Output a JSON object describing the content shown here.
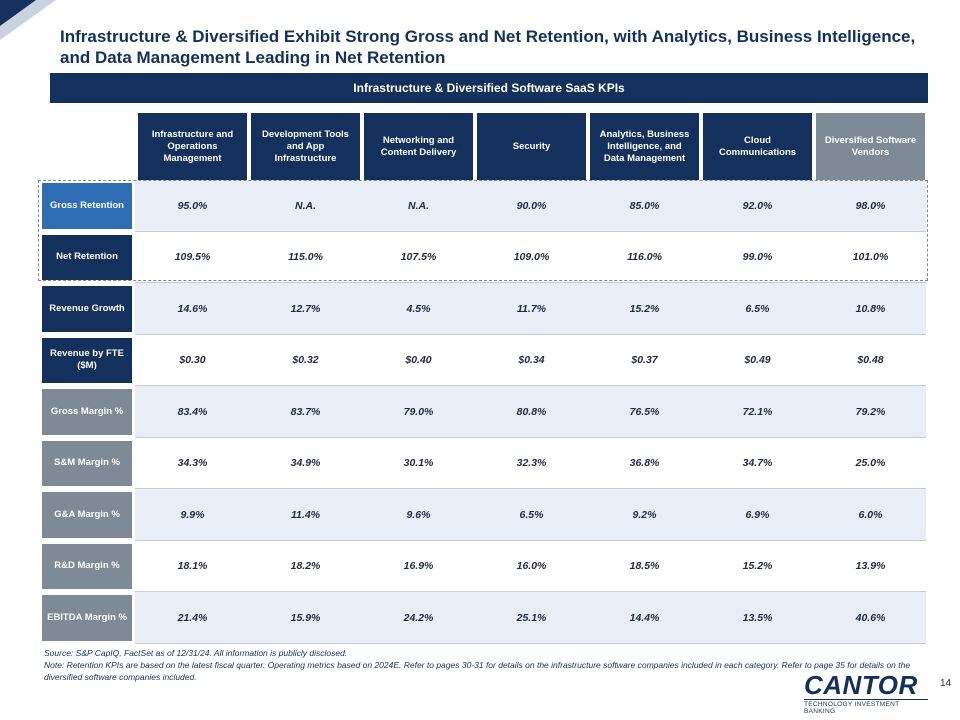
{
  "title": "Infrastructure & Diversified Exhibit Strong Gross and Net Retention, with Analytics, Business Intelligence, and Data Management Leading in Net Retention",
  "table_band": "Infrastructure & Diversified Software SaaS KPIs",
  "columns": [
    "Infrastructure and Operations Management",
    "Development Tools and App Infrastructure",
    "Networking and Content Delivery",
    "Security",
    "Analytics, Business Intelligence, and Data Management",
    "Cloud Communications",
    "Diversified Software Vendors"
  ],
  "rows": [
    {
      "label": "Gross Retention",
      "values": [
        "95.0%",
        "N.A.",
        "N.A.",
        "90.0%",
        "85.0%",
        "92.0%",
        "98.0%"
      ]
    },
    {
      "label": "Net Retention",
      "values": [
        "109.5%",
        "115.0%",
        "107.5%",
        "109.0%",
        "116.0%",
        "99.0%",
        "101.0%"
      ]
    },
    {
      "label": "Revenue Growth",
      "values": [
        "14.6%",
        "12.7%",
        "4.5%",
        "11.7%",
        "15.2%",
        "6.5%",
        "10.8%"
      ]
    },
    {
      "label": "Revenue by FTE ($M)",
      "values": [
        "$0.30",
        "$0.32",
        "$0.40",
        "$0.34",
        "$0.37",
        "$0.49",
        "$0.48"
      ]
    },
    {
      "label": "Gross Margin %",
      "values": [
        "83.4%",
        "83.7%",
        "79.0%",
        "80.8%",
        "76.5%",
        "72.1%",
        "79.2%"
      ]
    },
    {
      "label": "S&M Margin %",
      "values": [
        "34.3%",
        "34.9%",
        "30.1%",
        "32.3%",
        "36.8%",
        "34.7%",
        "25.0%"
      ]
    },
    {
      "label": "G&A Margin %",
      "values": [
        "9.9%",
        "11.4%",
        "9.6%",
        "6.5%",
        "9.2%",
        "6.9%",
        "6.0%"
      ]
    },
    {
      "label": "R&D Margin %",
      "values": [
        "18.1%",
        "18.2%",
        "16.9%",
        "16.0%",
        "18.5%",
        "15.2%",
        "13.9%"
      ]
    },
    {
      "label": "EBITDA Margin %",
      "values": [
        "21.4%",
        "15.9%",
        "24.2%",
        "25.1%",
        "14.4%",
        "13.5%",
        "40.6%"
      ]
    }
  ],
  "notes": {
    "source": "Source: S&P CapIQ, FactSet as of 12/31/24. All information is publicly disclosed.",
    "note": "Note: Retention KPIs are based on the latest fiscal quarter. Operating metrics based on 2024E. Refer to pages 30-31 for details on the infrastructure software companies included in each category. Refer to page 35 for details on the diversified software companies included."
  },
  "logo": {
    "word": "CANTOR",
    "tagline": "TECHNOLOGY INVESTMENT BANKING"
  },
  "page_number": "14",
  "colors": {
    "navy": "#14305c",
    "blue": "#2f6eb5",
    "grey": "#7e8a96",
    "alt_row": "#e9eef6"
  }
}
